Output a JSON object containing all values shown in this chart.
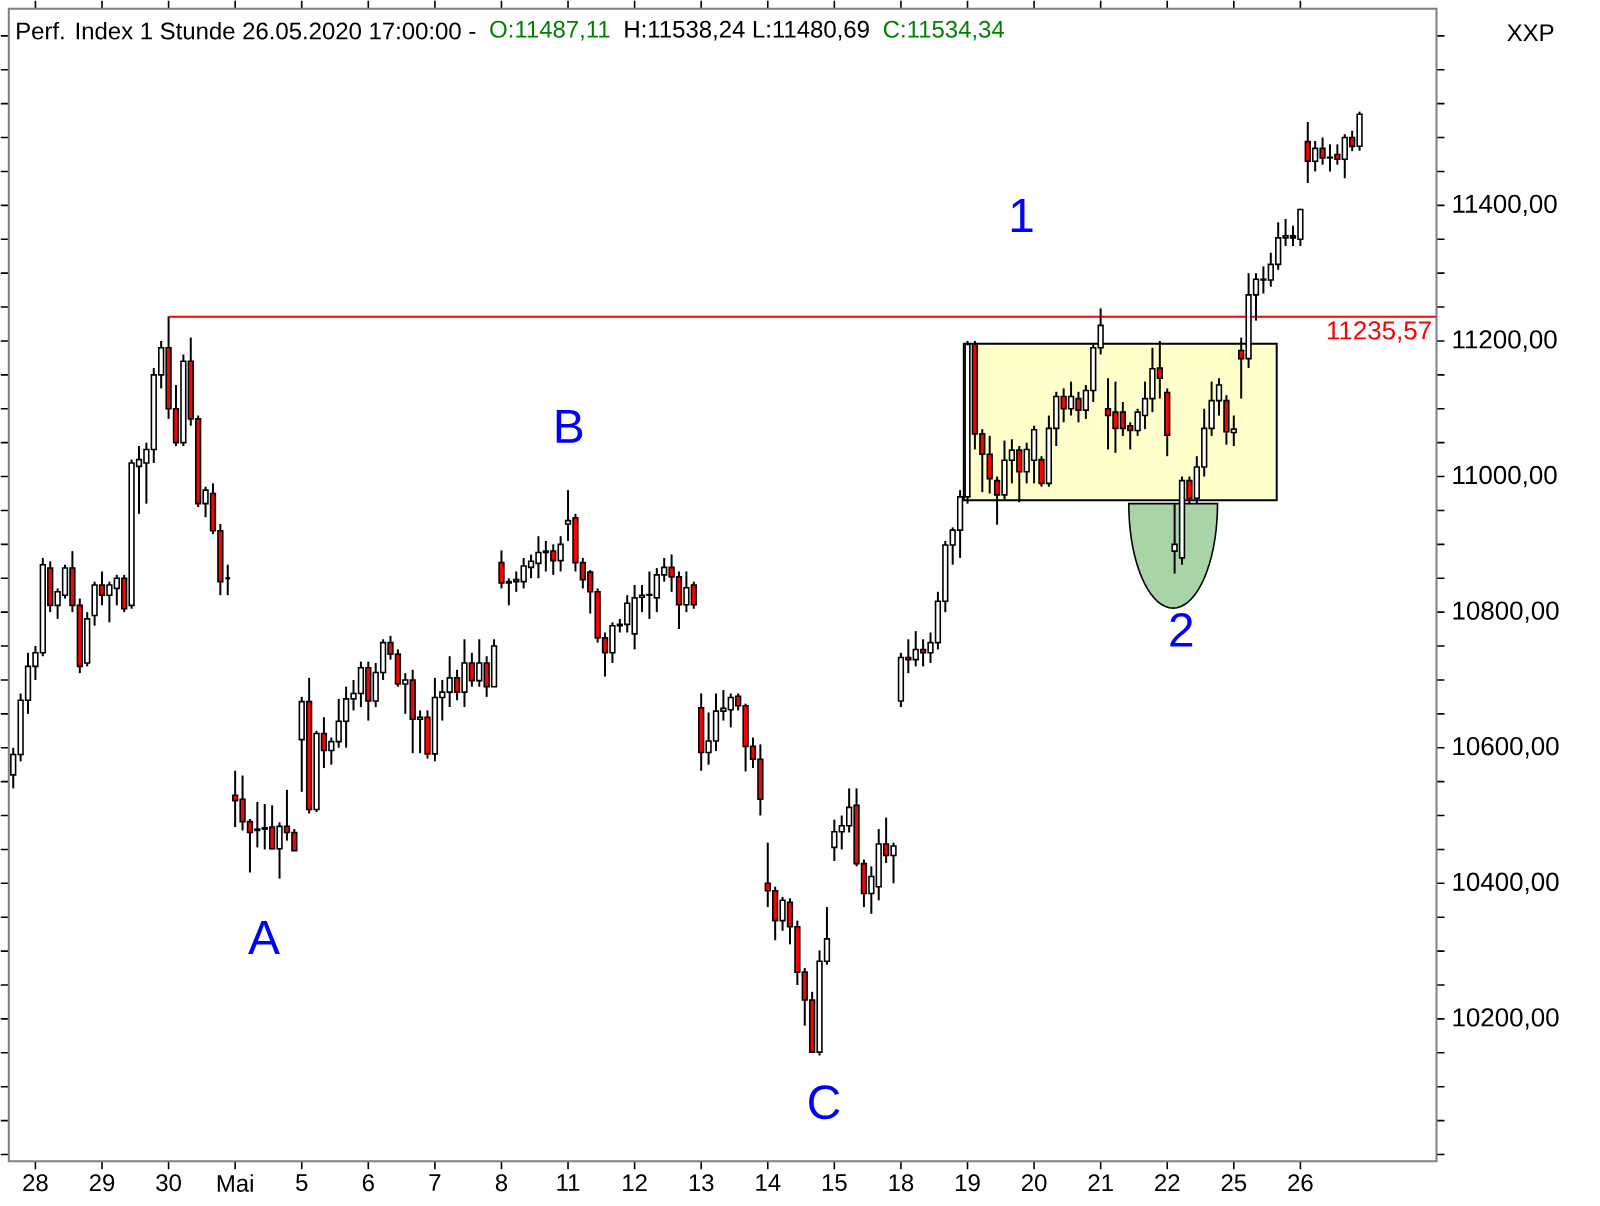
{
  "chart_data": {
    "type": "candlestick",
    "title": "Perf. Index 1 Stunde   26.05.2020 17:00:00 -",
    "annotations": [
      "O:11487,11",
      "H:11538,24 L:11480,69",
      "C:11534,34",
      "XXP",
      "1",
      "B",
      "A",
      "C",
      "2"
    ],
    "categories": [
      null,
      null,
      null,
      "28",
      null,
      null,
      null,
      null,
      null,
      null,
      null,
      null,
      "29",
      null,
      null,
      null,
      null,
      null,
      null,
      null,
      null,
      "30",
      null,
      null,
      null,
      null,
      null,
      null,
      null,
      null,
      "Mai",
      null,
      null,
      null,
      null,
      null,
      null,
      null,
      null,
      "5",
      null,
      null,
      null,
      null,
      null,
      null,
      null,
      null,
      "6",
      null,
      null,
      null,
      null,
      null,
      null,
      null,
      null,
      "7",
      null,
      null,
      null,
      null,
      null,
      null,
      null,
      null,
      "8",
      null,
      null,
      null,
      null,
      null,
      null,
      null,
      null,
      "11",
      null,
      null,
      null,
      null,
      null,
      null,
      null,
      null,
      "12",
      null,
      null,
      null,
      null,
      null,
      null,
      null,
      null,
      "13",
      null,
      null,
      null,
      null,
      null,
      null,
      null,
      null,
      "14",
      null,
      null,
      null,
      null,
      null,
      null,
      null,
      null,
      "15",
      null,
      null,
      null,
      null,
      null,
      null,
      null,
      null,
      "18",
      null,
      null,
      null,
      null,
      null,
      null,
      null,
      null,
      "19",
      null,
      null,
      null,
      null,
      null,
      null,
      null,
      null,
      "20",
      null,
      null,
      null,
      null,
      null,
      null,
      null,
      null,
      "21",
      null,
      null,
      null,
      null,
      null,
      null,
      null,
      null,
      "22",
      null,
      null,
      null,
      null,
      null,
      null,
      null,
      null,
      "25",
      null,
      null,
      null,
      null,
      null,
      null,
      null,
      null,
      "26",
      null,
      null,
      null,
      null,
      null,
      null,
      null,
      null
    ],
    "ohlc": [
      [
        10560,
        10600,
        10540,
        10590
      ],
      [
        10590,
        10680,
        10580,
        10670
      ],
      [
        10670,
        10740,
        10650,
        10720
      ],
      [
        10720,
        10750,
        10700,
        10740
      ],
      [
        10740,
        10880,
        10735,
        10870
      ],
      [
        10865,
        10875,
        10800,
        10810
      ],
      [
        10810,
        10835,
        10790,
        10830
      ],
      [
        10825,
        10870,
        10820,
        10865
      ],
      [
        10865,
        10890,
        10800,
        10810
      ],
      [
        10810,
        10820,
        10710,
        10720
      ],
      [
        10725,
        10800,
        10720,
        10790
      ],
      [
        10795,
        10845,
        10780,
        10840
      ],
      [
        10840,
        10860,
        10810,
        10825
      ],
      [
        10825,
        10845,
        10785,
        10840
      ],
      [
        10835,
        10855,
        10810,
        10850
      ],
      [
        10850,
        10855,
        10800,
        10805
      ],
      [
        10810,
        11025,
        10805,
        11020
      ],
      [
        11015,
        11045,
        10945,
        11025
      ],
      [
        11020,
        11050,
        10960,
        11040
      ],
      [
        11040,
        11160,
        11020,
        11150
      ],
      [
        11150,
        11200,
        11130,
        11190
      ],
      [
        11190,
        11236,
        11085,
        11100
      ],
      [
        11100,
        11135,
        11045,
        11050
      ],
      [
        11050,
        11180,
        11045,
        11170
      ],
      [
        11170,
        11205,
        11075,
        11085
      ],
      [
        11085,
        11090,
        10955,
        10960
      ],
      [
        10960,
        10985,
        10940,
        10980
      ],
      [
        10975,
        10990,
        10915,
        10920
      ],
      [
        10920,
        10930,
        10825,
        10845
      ],
      [
        10850,
        10870,
        10825,
        10850
      ],
      [
        10530,
        10566,
        10483,
        10522
      ],
      [
        10524,
        10559,
        10478,
        10491
      ],
      [
        10491,
        10495,
        10416,
        10475
      ],
      [
        10478,
        10520,
        10453,
        10480
      ],
      [
        10480,
        10517,
        10450,
        10482
      ],
      [
        10483,
        10515,
        10450,
        10451
      ],
      [
        10451,
        10490,
        10407,
        10484
      ],
      [
        10484,
        10538,
        10463,
        10475
      ],
      [
        10475,
        10480,
        10448,
        10448
      ],
      [
        10612,
        10675,
        10535,
        10668
      ],
      [
        10668,
        10703,
        10503,
        10509
      ],
      [
        10509,
        10625,
        10505,
        10621
      ],
      [
        10621,
        10645,
        10570,
        10596
      ],
      [
        10596,
        10615,
        10575,
        10609
      ],
      [
        10609,
        10672,
        10600,
        10639
      ],
      [
        10639,
        10690,
        10600,
        10672
      ],
      [
        10672,
        10700,
        10655,
        10680
      ],
      [
        10680,
        10727,
        10660,
        10718
      ],
      [
        10718,
        10727,
        10640,
        10669
      ],
      [
        10669,
        10725,
        10660,
        10711
      ],
      [
        10711,
        10760,
        10700,
        10755
      ],
      [
        10755,
        10765,
        10730,
        10738
      ],
      [
        10738,
        10745,
        10690,
        10694
      ],
      [
        10694,
        10710,
        10650,
        10700
      ],
      [
        10700,
        10715,
        10592,
        10642
      ],
      [
        10642,
        10655,
        10592,
        10645
      ],
      [
        10645,
        10655,
        10584,
        10591
      ],
      [
        10591,
        10703,
        10580,
        10674
      ],
      [
        10674,
        10700,
        10640,
        10682
      ],
      [
        10682,
        10735,
        10660,
        10703
      ],
      [
        10703,
        10715,
        10670,
        10682
      ],
      [
        10682,
        10760,
        10660,
        10725
      ],
      [
        10725,
        10740,
        10690,
        10699
      ],
      [
        10699,
        10760,
        10690,
        10725
      ],
      [
        10725,
        10735,
        10675,
        10690
      ],
      [
        10690,
        10760,
        10690,
        10750
      ],
      [
        10873,
        10891,
        10835,
        10843
      ],
      [
        10843,
        10850,
        10810,
        10845
      ],
      [
        10845,
        10860,
        10830,
        10848
      ],
      [
        10845,
        10880,
        10835,
        10868
      ],
      [
        10866,
        10885,
        10850,
        10875
      ],
      [
        10872,
        10912,
        10850,
        10888
      ],
      [
        10888,
        10905,
        10860,
        10890
      ],
      [
        10890,
        10900,
        10855,
        10876
      ],
      [
        10876,
        10912,
        10860,
        10900
      ],
      [
        10930,
        10980,
        10905,
        10935
      ],
      [
        10939,
        10945,
        10860,
        10873
      ],
      [
        10873,
        10880,
        10835,
        10848
      ],
      [
        10859,
        10862,
        10798,
        10830
      ],
      [
        10830,
        10835,
        10755,
        10762
      ],
      [
        10762,
        10770,
        10705,
        10740
      ],
      [
        10740,
        10785,
        10725,
        10780
      ],
      [
        10780,
        10790,
        10770,
        10782
      ],
      [
        10782,
        10825,
        10770,
        10813
      ],
      [
        10768,
        10840,
        10745,
        10821
      ],
      [
        10822,
        10840,
        10800,
        10825
      ],
      [
        10825,
        10860,
        10790,
        10826
      ],
      [
        10821,
        10865,
        10800,
        10855
      ],
      [
        10855,
        10880,
        10845,
        10866
      ],
      [
        10866,
        10885,
        10830,
        10852
      ],
      [
        10852,
        10860,
        10775,
        10811
      ],
      [
        10811,
        10860,
        10800,
        10836
      ],
      [
        10840,
        10845,
        10805,
        10811
      ],
      [
        10659,
        10680,
        10566,
        10593
      ],
      [
        10593,
        10652,
        10575,
        10610
      ],
      [
        10610,
        10680,
        10595,
        10654
      ],
      [
        10654,
        10685,
        10640,
        10658
      ],
      [
        10656,
        10680,
        10630,
        10674
      ],
      [
        10676,
        10680,
        10655,
        10662
      ],
      [
        10662,
        10665,
        10565,
        10602
      ],
      [
        10602,
        10615,
        10570,
        10583
      ],
      [
        10583,
        10605,
        10500,
        10524
      ],
      [
        10400,
        10460,
        10365,
        10389
      ],
      [
        10389,
        10395,
        10316,
        10345
      ],
      [
        10345,
        10380,
        10330,
        10375
      ],
      [
        10372,
        10378,
        10310,
        10336
      ],
      [
        10336,
        10345,
        10250,
        10269
      ],
      [
        10269,
        10275,
        10190,
        10228
      ],
      [
        10228,
        10240,
        10150,
        10151
      ],
      [
        10151,
        10301,
        10146,
        10285
      ],
      [
        10285,
        10365,
        10280,
        10318
      ],
      [
        10453,
        10494,
        10433,
        10476
      ],
      [
        10476,
        10500,
        10450,
        10485
      ],
      [
        10485,
        10540,
        10475,
        10512
      ],
      [
        10515,
        10540,
        10425,
        10429
      ],
      [
        10429,
        10435,
        10365,
        10385
      ],
      [
        10385,
        10425,
        10355,
        10410
      ],
      [
        10395,
        10480,
        10375,
        10458
      ],
      [
        10458,
        10497,
        10430,
        10441
      ],
      [
        10441,
        10460,
        10400,
        10455
      ],
      [
        10669,
        10740,
        10660,
        10733
      ],
      [
        10733,
        10760,
        10710,
        10730
      ],
      [
        10730,
        10772,
        10720,
        10745
      ],
      [
        10745,
        10760,
        10720,
        10740
      ],
      [
        10740,
        10770,
        10725,
        10755
      ],
      [
        10755,
        10830,
        10745,
        10816
      ],
      [
        10816,
        10905,
        10800,
        10899
      ],
      [
        10899,
        10925,
        10870,
        10921
      ],
      [
        10921,
        10980,
        10880,
        10970
      ],
      [
        10970,
        11200,
        10960,
        11195
      ],
      [
        11195,
        11200,
        11040,
        11063
      ],
      [
        11063,
        11070,
        10977,
        11033
      ],
      [
        11033,
        11060,
        10975,
        10997
      ],
      [
        10994,
        11000,
        10929,
        10973
      ],
      [
        10973,
        11053,
        10965,
        11024
      ],
      [
        11024,
        11055,
        10990,
        11039
      ],
      [
        11039,
        11045,
        10962,
        11007
      ],
      [
        11007,
        11050,
        10990,
        11040
      ],
      [
        11024,
        11075,
        10990,
        11069
      ],
      [
        11025,
        11030,
        10985,
        10990
      ],
      [
        10990,
        11090,
        10985,
        11071
      ],
      [
        11071,
        11125,
        11045,
        11118
      ],
      [
        11118,
        11130,
        11080,
        11100
      ],
      [
        11100,
        11140,
        11090,
        11118
      ],
      [
        11115,
        11125,
        11080,
        11098
      ],
      [
        11098,
        11135,
        11085,
        11127
      ],
      [
        11127,
        11195,
        11110,
        11190
      ],
      [
        11190,
        11248,
        11180,
        11223
      ],
      [
        11100,
        11145,
        11040,
        11090
      ],
      [
        11095,
        11140,
        11035,
        11071
      ],
      [
        11095,
        11110,
        11060,
        11071
      ],
      [
        11075,
        11080,
        11040,
        11068
      ],
      [
        11068,
        11100,
        11060,
        11095
      ],
      [
        11090,
        11140,
        11070,
        11115
      ],
      [
        11115,
        11190,
        11095,
        11159
      ],
      [
        11160,
        11200,
        11115,
        11145
      ],
      [
        11124,
        11130,
        11030,
        11061
      ],
      [
        10890,
        10959,
        10857,
        10900
      ],
      [
        10880,
        11000,
        10870,
        10994
      ],
      [
        10994,
        11000,
        10960,
        10968
      ],
      [
        10968,
        11030,
        10960,
        11014
      ],
      [
        11014,
        11100,
        11000,
        11071
      ],
      [
        11071,
        11140,
        11060,
        11112
      ],
      [
        11112,
        11145,
        11090,
        11135
      ],
      [
        11112,
        11120,
        11047,
        11066
      ],
      [
        11065,
        11090,
        11045,
        11070
      ],
      [
        11186,
        11205,
        11115,
        11174
      ],
      [
        11174,
        11300,
        11160,
        11268
      ],
      [
        11268,
        11300,
        11230,
        11291
      ],
      [
        11291,
        11310,
        11270,
        11290
      ],
      [
        11290,
        11330,
        11280,
        11313
      ],
      [
        11313,
        11375,
        11305,
        11352
      ],
      [
        11352,
        11380,
        11340,
        11355
      ],
      [
        11355,
        11370,
        11340,
        11352
      ],
      [
        11350,
        11395,
        11340,
        11394
      ],
      [
        11494,
        11523,
        11433,
        11465
      ],
      [
        11465,
        11495,
        11450,
        11484
      ],
      [
        11484,
        11500,
        11460,
        11470
      ],
      [
        11470,
        11490,
        11450,
        11471
      ],
      [
        11475,
        11490,
        11460,
        11468
      ],
      [
        11468,
        11505,
        11440,
        11500
      ],
      [
        11500,
        11510,
        11480,
        11487
      ],
      [
        11487.11,
        11538.24,
        11480.69,
        11534.34
      ]
    ],
    "ylim": [
      9990,
      11690
    ],
    "yticks": [
      {
        "value": 10000,
        "label": null
      },
      {
        "value": 10050,
        "label": null
      },
      {
        "value": 10100,
        "label": null
      },
      {
        "value": 10150,
        "label": null
      },
      {
        "value": 10200,
        "label": "10200,00"
      },
      {
        "value": 10250,
        "label": null
      },
      {
        "value": 10300,
        "label": null
      },
      {
        "value": 10350,
        "label": null
      },
      {
        "value": 10400,
        "label": "10400,00"
      },
      {
        "value": 10450,
        "label": null
      },
      {
        "value": 10500,
        "label": null
      },
      {
        "value": 10550,
        "label": null
      },
      {
        "value": 10600,
        "label": "10600,00"
      },
      {
        "value": 10650,
        "label": null
      },
      {
        "value": 10700,
        "label": null
      },
      {
        "value": 10750,
        "label": null
      },
      {
        "value": 10800,
        "label": "10800,00"
      },
      {
        "value": 10850,
        "label": null
      },
      {
        "value": 10900,
        "label": null
      },
      {
        "value": 10950,
        "label": null
      },
      {
        "value": 11000,
        "label": "11000,00"
      },
      {
        "value": 11050,
        "label": null
      },
      {
        "value": 11100,
        "label": null
      },
      {
        "value": 11150,
        "label": null
      },
      {
        "value": 11200,
        "label": "11200,00"
      },
      {
        "value": 11250,
        "label": null
      },
      {
        "value": 11300,
        "label": null
      },
      {
        "value": 11350,
        "label": null
      },
      {
        "value": 11400,
        "label": "11400,00"
      },
      {
        "value": 11450,
        "label": null
      },
      {
        "value": 11500,
        "label": null
      },
      {
        "value": 11550,
        "label": null
      },
      {
        "value": 11600,
        "label": null
      },
      {
        "value": 11650,
        "label": null
      }
    ],
    "ref_lines": [
      {
        "axis": "y",
        "value": 11235.57,
        "label": "11235,57",
        "color": "#ff0000"
      }
    ],
    "grid": false
  }
}
